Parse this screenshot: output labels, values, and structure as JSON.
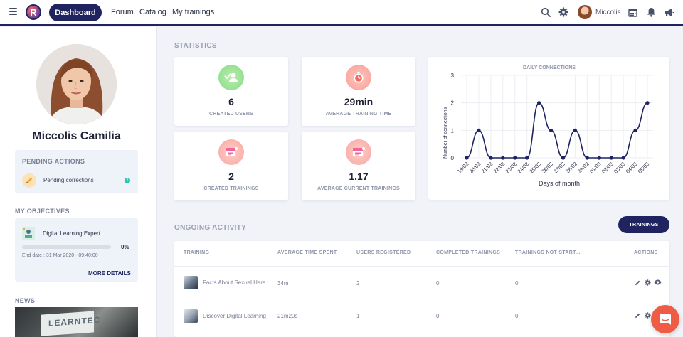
{
  "nav": {
    "dashboard": "Dashboard",
    "forum": "Forum",
    "catalog": "Catalog",
    "my_trainings": "My trainings",
    "user_name": "Miccolis"
  },
  "profile": {
    "name": "Miccolis Camilia"
  },
  "pending_actions": {
    "title": "PENDING ACTIONS",
    "item_label": "Pending corrections",
    "count": "2"
  },
  "objectives": {
    "title": "MY OBJECTIVES",
    "item_title": "Digital Learning Expert",
    "progress_percent": 0,
    "progress_label": "0%",
    "end_date": "End date : 31 Mar 2020 - 09:40:00",
    "more_details": "MORE DETAILS"
  },
  "news": {
    "title": "NEWS",
    "image_sign_text": "LEARNTEC"
  },
  "statistics": {
    "title": "STATISTICS",
    "cards": [
      {
        "value": "6",
        "label": "CREATED USERS"
      },
      {
        "value": "29min",
        "label": "AVERAGE TRAINING TIME"
      },
      {
        "value": "2",
        "label": "CREATED TRAININGS"
      },
      {
        "value": "1.17",
        "label": "AVERAGE CURRENT TRAININGS"
      }
    ]
  },
  "chart_data": {
    "type": "line",
    "title": "DAILY CONNECTIONS",
    "xlabel": "Days of month",
    "ylabel": "Number of connections",
    "categories": [
      "19/02",
      "20/02",
      "21/02",
      "22/02",
      "23/02",
      "24/02",
      "25/02",
      "26/02",
      "27/02",
      "28/02",
      "29/02",
      "01/03",
      "02/03",
      "03/03",
      "04/03",
      "05/03"
    ],
    "series": [
      {
        "values": [
          0,
          1,
          0,
          0,
          0,
          0,
          2,
          1,
          0,
          1,
          0,
          0,
          0,
          0,
          1,
          2
        ]
      }
    ],
    "ylim": [
      0,
      3
    ],
    "yticks": [
      "0",
      "1",
      "2",
      "3"
    ],
    "grid": true,
    "line_color": "#1f2461"
  },
  "activity": {
    "title": "ONGOING ACTIVITY",
    "button": "TRAININGS",
    "columns": [
      "TRAINING",
      "AVERAGE TIME SPENT",
      "USERS REGISTERED",
      "COMPLETED TRAININGS",
      "TRAININGS NOT START...",
      "ACTIONS"
    ],
    "rows": [
      {
        "name": "Facts About Sexual Hara...",
        "time": "34m",
        "users": "2",
        "completed": "0",
        "not_started": "0"
      },
      {
        "name": "Discover Digital Learning",
        "time": "21m20s",
        "users": "1",
        "completed": "0",
        "not_started": "0"
      }
    ]
  },
  "colors": {
    "primary": "#1f2461",
    "accent_teal": "#31c3b2",
    "chat": "#ef5b45"
  }
}
